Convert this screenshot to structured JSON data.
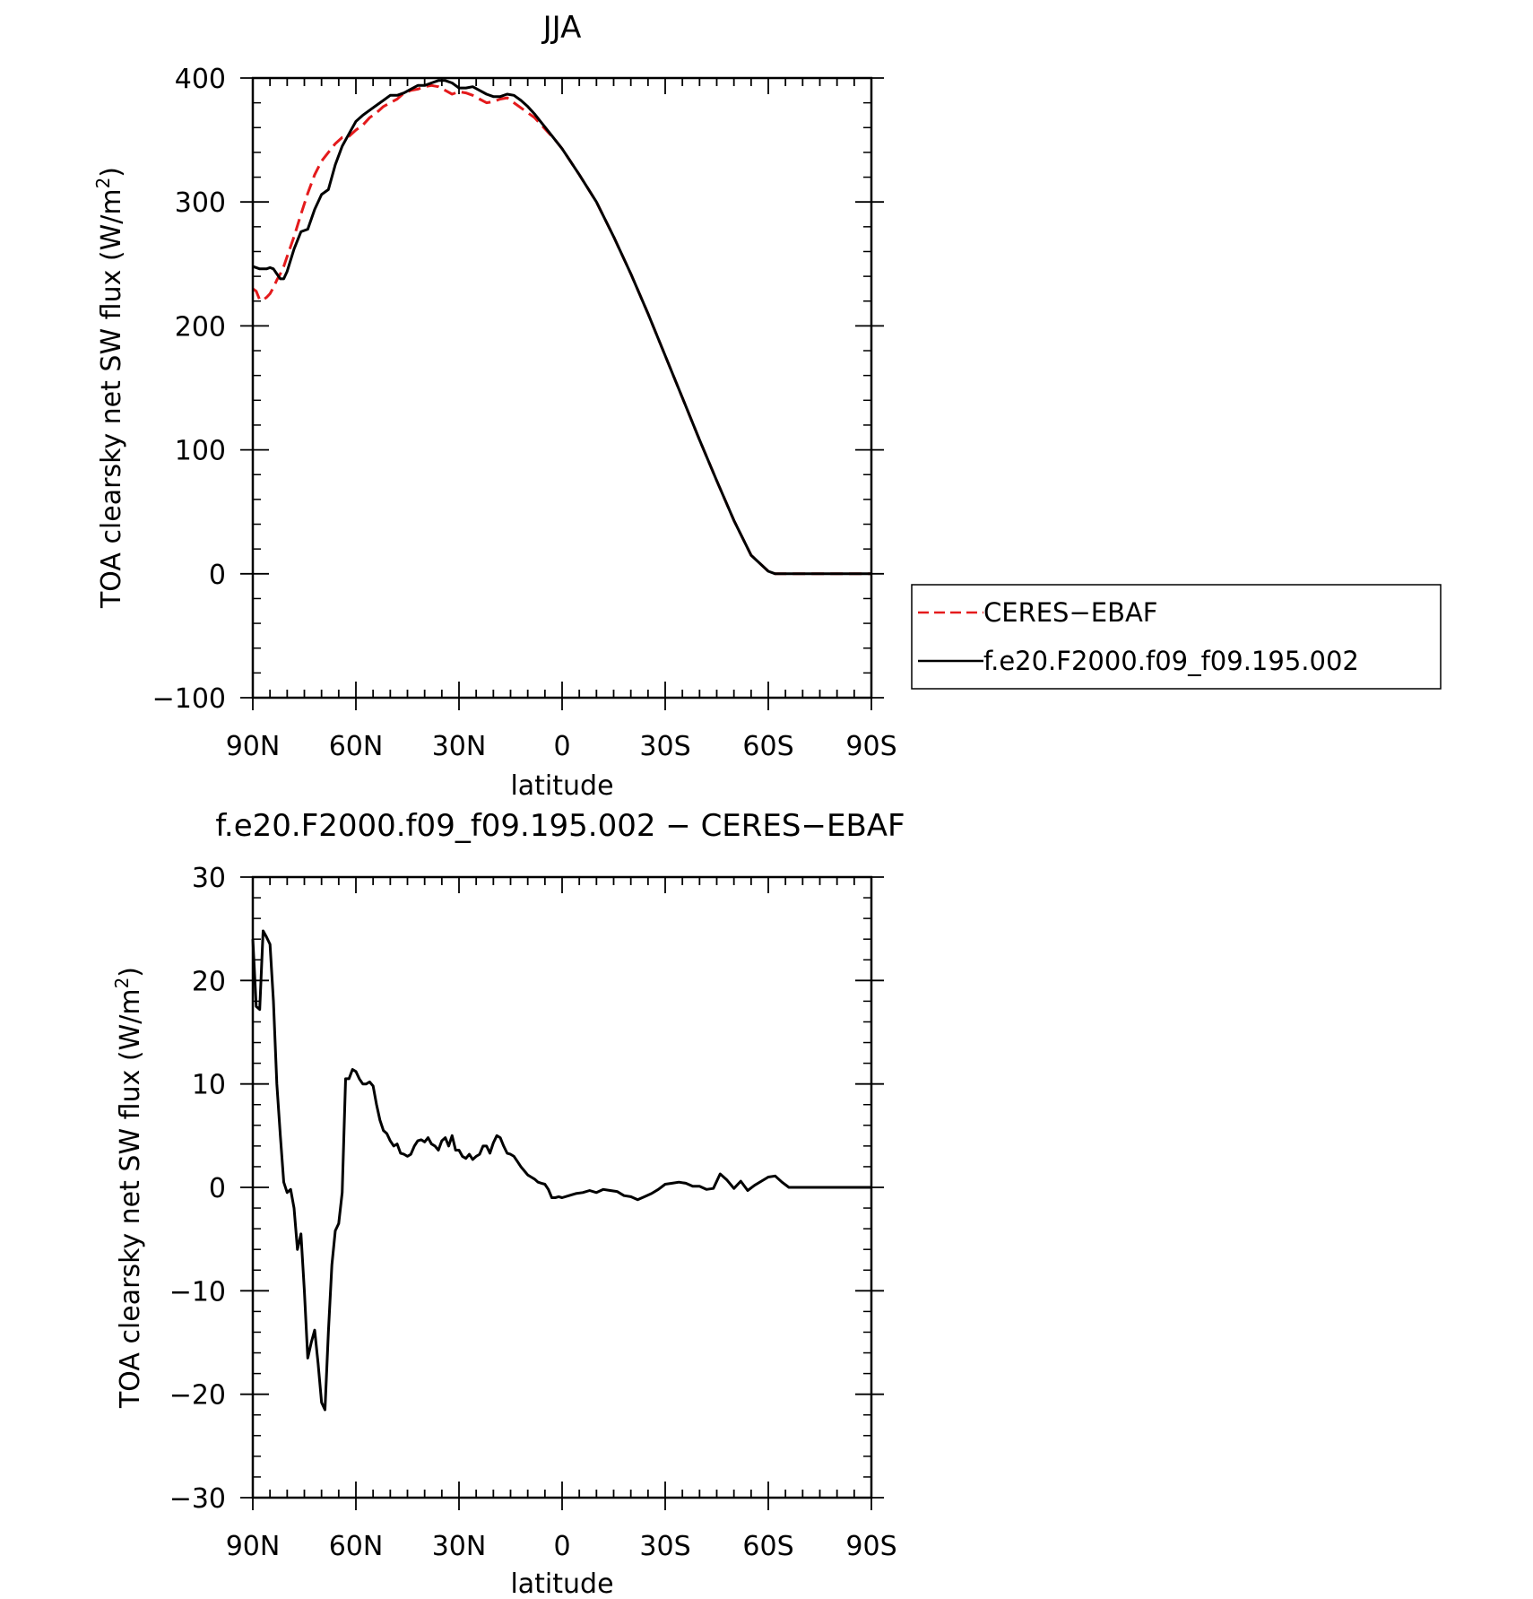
{
  "figure": {
    "panels": [
      "top",
      "bottom"
    ]
  },
  "chart_data": [
    {
      "type": "line",
      "title": "JJA",
      "xlabel": "latitude",
      "ylabel_main": "TOA clearsky net SW flux (W/m",
      "ylabel_sup": "2",
      "ylabel_end": ")",
      "xlim": [
        90,
        -90
      ],
      "ylim": [
        -100,
        400
      ],
      "x_ticks": [
        {
          "value": 90,
          "label": "90N"
        },
        {
          "value": 60,
          "label": "60N"
        },
        {
          "value": 30,
          "label": "30N"
        },
        {
          "value": 0,
          "label": "0"
        },
        {
          "value": -30,
          "label": "30S"
        },
        {
          "value": -60,
          "label": "60S"
        },
        {
          "value": -90,
          "label": "90S"
        }
      ],
      "y_ticks": [
        {
          "value": -100,
          "label": "−100"
        },
        {
          "value": 0,
          "label": "0"
        },
        {
          "value": 100,
          "label": "100"
        },
        {
          "value": 200,
          "label": "200"
        },
        {
          "value": 300,
          "label": "300"
        },
        {
          "value": 400,
          "label": "400"
        }
      ],
      "legend": {
        "placement": "right",
        "entries": [
          {
            "series": 0,
            "label": "CERES−EBAF"
          },
          {
            "series": 1,
            "label": "f.e20.F2000.f09_f09.195.002"
          }
        ]
      },
      "series": [
        {
          "name": "CERES−EBAF",
          "color": "#e41a1c",
          "dash": "dashed",
          "x": [
            90,
            89,
            88,
            87,
            86,
            85,
            84,
            83,
            82,
            81,
            80,
            78,
            76,
            74,
            72,
            70,
            68,
            66,
            64,
            62,
            60,
            58,
            56,
            54,
            52,
            50,
            48,
            46,
            44,
            42,
            40,
            38,
            36,
            34,
            32,
            30,
            28,
            26,
            24,
            22,
            20,
            18,
            16,
            14,
            12,
            10,
            8,
            6,
            4,
            2,
            0,
            -5,
            -10,
            -15,
            -20,
            -25,
            -30,
            -35,
            -40,
            -45,
            -50,
            -55,
            -60,
            -62,
            -64,
            -66,
            -68,
            -70,
            -72,
            -75,
            -78,
            -80,
            -85,
            -90
          ],
          "y": [
            230,
            228,
            221,
            221,
            223,
            226,
            231,
            237,
            242,
            248,
            256,
            272,
            290,
            307,
            322,
            333,
            340,
            347,
            352,
            353,
            358,
            362,
            368,
            372,
            377,
            380,
            383,
            388,
            390,
            391,
            393,
            394,
            393,
            390,
            387,
            389,
            388,
            386,
            383,
            380,
            381,
            383,
            384,
            380,
            376,
            372,
            368,
            362,
            356,
            350,
            343,
            322,
            300,
            272,
            242,
            210,
            176,
            142,
            108,
            75,
            43,
            15,
            2,
            0,
            0,
            0,
            0,
            0,
            0,
            0,
            0,
            0,
            0,
            0
          ]
        },
        {
          "name": "f.e20.F2000.f09_f09.195.002",
          "color": "#000000",
          "dash": "solid",
          "x": [
            90,
            89,
            88,
            87,
            86,
            85,
            84,
            83,
            82,
            81,
            80,
            78,
            76,
            74,
            72,
            70,
            68,
            66,
            64,
            62,
            60,
            58,
            56,
            54,
            52,
            50,
            48,
            46,
            44,
            42,
            40,
            38,
            36,
            34,
            32,
            30,
            28,
            26,
            24,
            22,
            20,
            18,
            16,
            14,
            12,
            10,
            8,
            6,
            4,
            2,
            0,
            -5,
            -10,
            -15,
            -20,
            -25,
            -30,
            -35,
            -40,
            -45,
            -50,
            -55,
            -60,
            -62,
            -64,
            -66,
            -68,
            -70,
            -72,
            -75,
            -78,
            -80,
            -85,
            -90
          ],
          "y": [
            248,
            247,
            246,
            246,
            246,
            247,
            246,
            242,
            238,
            238,
            244,
            262,
            276,
            278,
            294,
            306,
            310,
            330,
            345,
            355,
            365,
            370,
            374,
            378,
            382,
            386,
            386,
            388,
            391,
            394,
            394,
            396,
            398,
            398,
            396,
            392,
            392,
            393,
            390,
            387,
            385,
            385,
            387,
            386,
            382,
            377,
            371,
            364,
            357,
            350,
            343,
            322,
            300,
            272,
            242,
            210,
            176,
            142,
            108,
            75,
            43,
            15,
            2,
            0,
            0,
            0,
            0,
            0,
            0,
            0,
            0,
            0,
            0,
            0
          ]
        }
      ]
    },
    {
      "type": "line",
      "title": "f.e20.F2000.f09_f09.195.002 − CERES−EBAF",
      "xlabel": "latitude",
      "ylabel_main": "TOA clearsky net SW flux (W/m",
      "ylabel_sup": "2",
      "ylabel_end": ")",
      "xlim": [
        90,
        -90
      ],
      "ylim": [
        -30,
        30
      ],
      "x_ticks": [
        {
          "value": 90,
          "label": "90N"
        },
        {
          "value": 60,
          "label": "60N"
        },
        {
          "value": 30,
          "label": "30N"
        },
        {
          "value": 0,
          "label": "0"
        },
        {
          "value": -30,
          "label": "30S"
        },
        {
          "value": -60,
          "label": "60S"
        },
        {
          "value": -90,
          "label": "90S"
        }
      ],
      "y_ticks": [
        {
          "value": -30,
          "label": "−30"
        },
        {
          "value": -20,
          "label": "−20"
        },
        {
          "value": -10,
          "label": "−10"
        },
        {
          "value": 0,
          "label": "0"
        },
        {
          "value": 10,
          "label": "10"
        },
        {
          "value": 20,
          "label": "20"
        },
        {
          "value": 30,
          "label": "30"
        }
      ],
      "series": [
        {
          "color": "#000000",
          "dash": "solid",
          "x": [
            90,
            89,
            88,
            87,
            86,
            85,
            84,
            83,
            82,
            81,
            80,
            79,
            78,
            77,
            76,
            75,
            74,
            73,
            72,
            71,
            70,
            69,
            68,
            67,
            66,
            65,
            64,
            63,
            62,
            61,
            60,
            59,
            58,
            57,
            56,
            55,
            54,
            53,
            52,
            51,
            50,
            49,
            48,
            47,
            46,
            45,
            44,
            43,
            42,
            41,
            40,
            39,
            38,
            37,
            36,
            35,
            34,
            33,
            32,
            31,
            30,
            29,
            28,
            27,
            26,
            25,
            24,
            23,
            22,
            21,
            20,
            19,
            18,
            17,
            16,
            15,
            14,
            13,
            12,
            11,
            10,
            9,
            8,
            7,
            6,
            5,
            4,
            3,
            2,
            1,
            0,
            -2,
            -4,
            -6,
            -8,
            -10,
            -12,
            -14,
            -16,
            -18,
            -20,
            -22,
            -24,
            -26,
            -28,
            -30,
            -32,
            -34,
            -36,
            -38,
            -40,
            -42,
            -44,
            -46,
            -48,
            -50,
            -52,
            -54,
            -56,
            -58,
            -60,
            -62,
            -64,
            -66,
            -68,
            -70,
            -72,
            -74,
            -76,
            -78,
            -80,
            -82,
            -84,
            -86,
            -88,
            -90
          ],
          "y": [
            24,
            17.5,
            17.2,
            24.8,
            24.2,
            23.5,
            18,
            10,
            5,
            0.5,
            -0.5,
            -0.2,
            -2,
            -6,
            -4.5,
            -10,
            -16.5,
            -15,
            -13.8,
            -17,
            -20.8,
            -21.5,
            -14,
            -7.5,
            -4.2,
            -3.5,
            -0.5,
            10.5,
            10.5,
            11.4,
            11.2,
            10.5,
            10,
            10,
            10.2,
            9.8,
            8,
            6.5,
            5.5,
            5.2,
            4.5,
            4,
            4.2,
            3.3,
            3.2,
            3,
            3.2,
            4,
            4.5,
            4.6,
            4.4,
            4.8,
            4.2,
            4,
            3.6,
            4.5,
            4.8,
            4,
            5,
            3.6,
            3.6,
            3,
            2.8,
            3.2,
            2.7,
            3,
            3.2,
            4,
            4,
            3.3,
            4.3,
            5,
            4.8,
            4,
            3.3,
            3.2,
            3,
            2.5,
            2,
            1.6,
            1.2,
            1,
            0.8,
            0.5,
            0.4,
            0.3,
            -0.2,
            -1,
            -1,
            -0.9,
            -1,
            -0.8,
            -0.6,
            -0.5,
            -0.3,
            -0.5,
            -0.2,
            -0.3,
            -0.4,
            -0.8,
            -0.9,
            -1.2,
            -0.9,
            -0.6,
            -0.2,
            0.3,
            0.4,
            0.5,
            0.4,
            0.1,
            0.1,
            -0.2,
            -0.1,
            1.3,
            0.7,
            -0.1,
            0.6,
            -0.3,
            0.2,
            0.6,
            1,
            1.1,
            0.5,
            0,
            0,
            0,
            0,
            0,
            0,
            0,
            0,
            0,
            0,
            0,
            0,
            0
          ]
        }
      ]
    }
  ]
}
